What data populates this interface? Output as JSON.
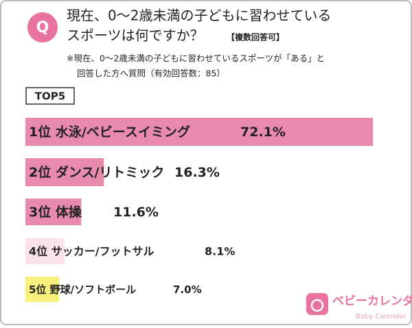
{
  "header": {
    "badge": "Q",
    "title_lines": [
      "現在、0〜2歳未満の子どもに習わせている",
      "スポーツは何ですか？"
    ],
    "title_note": "【複数回答可】",
    "note_lines": [
      "※現在、0〜2歳未満の子どもに習わせているスポーツが「ある」と",
      "回答した方へ質問（有効回答数：85）"
    ]
  },
  "chart_data": {
    "type": "bar",
    "subtitle": "TOP5",
    "categories": [
      "1位 水泳/ベビースイミング",
      "2位 ダンス/リトミック",
      "3位 体操",
      "4位 サッカー/フットサル",
      "5位 野球/ソフトボール"
    ],
    "values": [
      72.1,
      16.3,
      11.6,
      8.1,
      7.0
    ],
    "value_labels": [
      "72.1%",
      "16.3%",
      "11.6%",
      "8.1%",
      "7.0%"
    ],
    "colors": [
      "#e889ae",
      "#e889ae",
      "#e889ae",
      "#fbe2ec",
      "#f7f07a"
    ]
  },
  "logo": {
    "name": "ベビーカレンダー",
    "sub": "Baby Calendar"
  }
}
